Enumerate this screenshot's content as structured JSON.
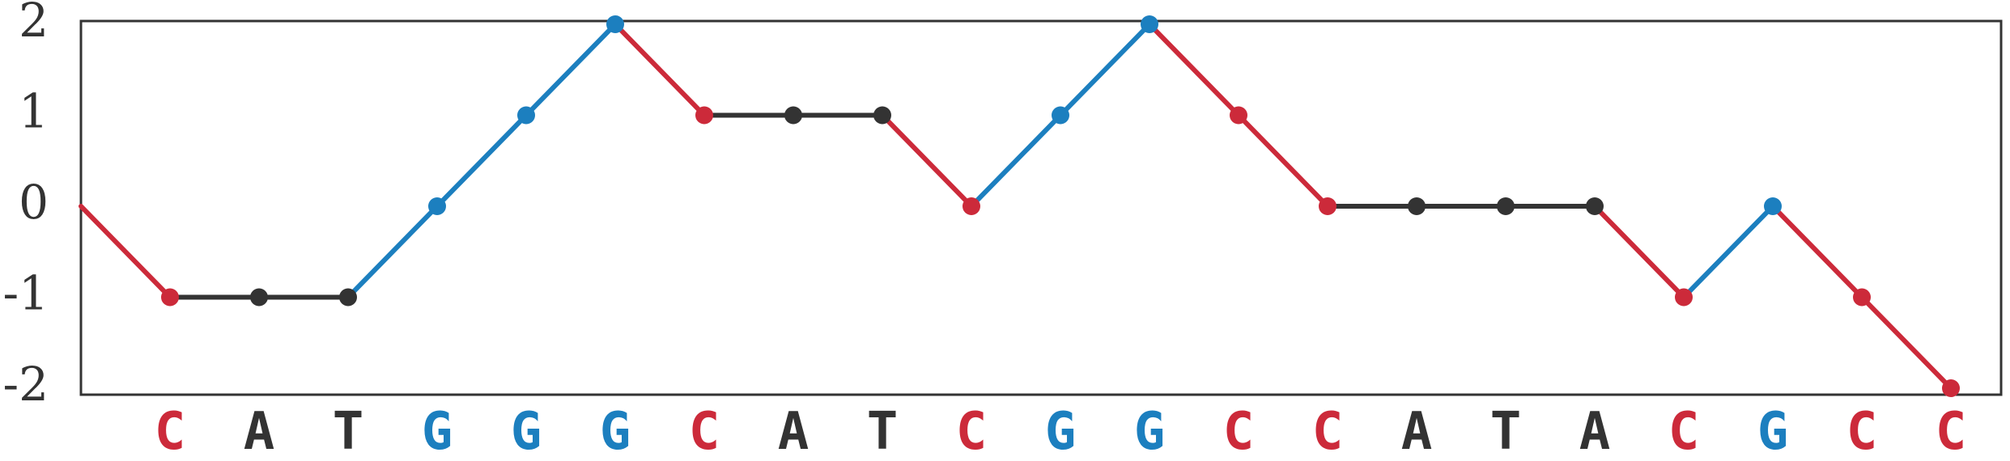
{
  "chart_data": {
    "type": "line",
    "title": "",
    "xlabel": "",
    "ylabel": "",
    "ylim": [
      -2,
      2
    ],
    "yticks": [
      "2",
      "1",
      "0",
      "-1",
      "-2"
    ],
    "grid": false,
    "categories": [
      "C",
      "A",
      "T",
      "G",
      "G",
      "G",
      "C",
      "A",
      "T",
      "C",
      "G",
      "G",
      "C",
      "C",
      "A",
      "T",
      "A",
      "C",
      "G",
      "C",
      "C"
    ],
    "start_value": 0,
    "values": [
      -1,
      -1,
      -1,
      0,
      1,
      2,
      1,
      1,
      1,
      0,
      1,
      2,
      1,
      0,
      0,
      0,
      0,
      -1,
      0,
      -1,
      -2
    ],
    "colors": {
      "C": "#cc2a3a",
      "G": "#1c7fbf",
      "A": "#333333",
      "T": "#333333"
    },
    "frame_color": "#333333"
  }
}
